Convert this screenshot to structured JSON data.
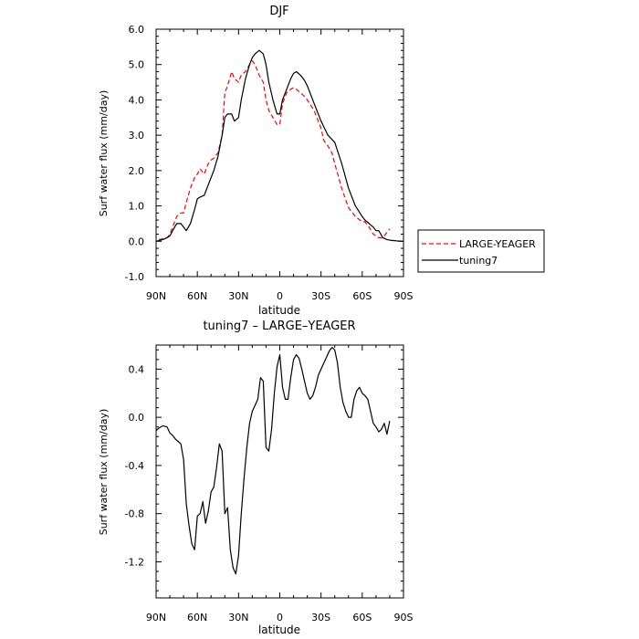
{
  "chart_data": [
    {
      "type": "line",
      "title": "DJF",
      "xlabel": "latitude",
      "ylabel": "Surf water flux (mm/day)",
      "xlim": [
        -90,
        90
      ],
      "ylim": [
        -1.0,
        6.0
      ],
      "x_ticks": [
        -90,
        -60,
        -30,
        0,
        30,
        60,
        90
      ],
      "x_tick_labels": [
        "90N",
        "60N",
        "30N",
        "0",
        "30S",
        "60S",
        "90S"
      ],
      "y_ticks": [
        -1.0,
        0.0,
        1.0,
        2.0,
        3.0,
        4.0,
        5.0,
        6.0
      ],
      "y_tick_labels": [
        "-1.0",
        "0.0",
        "1.0",
        "2.0",
        "3.0",
        "4.0",
        "5.0",
        "6.0"
      ],
      "grid": false,
      "legend_position": "right",
      "series": [
        {
          "name": "LARGE-YEAGER",
          "color": "#ff0000",
          "dash": "dashed",
          "x": [
            -88,
            -85,
            -82,
            -80,
            -78,
            -75,
            -72,
            -70,
            -68,
            -65,
            -62,
            -60,
            -58,
            -55,
            -52,
            -50,
            -48,
            -45,
            -42,
            -40,
            -38,
            -35,
            -33,
            -30,
            -28,
            -25,
            -22,
            -20,
            -18,
            -15,
            -12,
            -10,
            -8,
            -5,
            -2,
            0,
            2,
            5,
            8,
            10,
            12,
            15,
            18,
            20,
            25,
            30,
            32,
            35,
            38,
            40,
            45,
            50,
            55,
            60,
            62,
            65,
            68,
            70,
            72,
            75,
            78,
            80
          ],
          "y": [
            0.05,
            0.07,
            0.1,
            0.2,
            0.4,
            0.7,
            0.8,
            0.8,
            1.1,
            1.5,
            1.8,
            1.9,
            2.05,
            1.9,
            2.2,
            2.3,
            2.35,
            2.5,
            3.0,
            4.2,
            4.4,
            4.8,
            4.6,
            4.5,
            4.7,
            4.8,
            5.0,
            5.1,
            5.0,
            4.7,
            4.5,
            4.0,
            3.7,
            3.5,
            3.3,
            3.3,
            3.9,
            4.2,
            4.3,
            4.35,
            4.3,
            4.2,
            4.1,
            4.0,
            3.7,
            3.2,
            2.85,
            2.7,
            2.5,
            2.2,
            1.5,
            0.95,
            0.7,
            0.55,
            0.55,
            0.4,
            0.2,
            0.15,
            0.1,
            0.1,
            0.25,
            0.35
          ]
        },
        {
          "name": "tuning7",
          "color": "#000000",
          "dash": "solid",
          "x": [
            -90,
            -85,
            -82,
            -80,
            -78,
            -75,
            -72,
            -70,
            -68,
            -65,
            -62,
            -60,
            -58,
            -55,
            -52,
            -50,
            -48,
            -45,
            -42,
            -40,
            -38,
            -35,
            -33,
            -30,
            -28,
            -25,
            -22,
            -20,
            -18,
            -15,
            -12,
            -10,
            -8,
            -5,
            -2,
            0,
            2,
            5,
            8,
            10,
            12,
            15,
            18,
            20,
            25,
            30,
            35,
            40,
            45,
            50,
            55,
            60,
            62,
            65,
            68,
            70,
            72,
            75,
            78,
            80,
            85,
            90
          ],
          "y": [
            0.0,
            0.05,
            0.1,
            0.15,
            0.3,
            0.5,
            0.5,
            0.4,
            0.3,
            0.5,
            0.9,
            1.2,
            1.25,
            1.3,
            1.6,
            1.8,
            2.0,
            2.4,
            3.0,
            3.5,
            3.6,
            3.6,
            3.4,
            3.5,
            4.0,
            4.6,
            5.0,
            5.2,
            5.3,
            5.4,
            5.3,
            5.0,
            4.5,
            4.0,
            3.6,
            3.6,
            4.0,
            4.3,
            4.6,
            4.75,
            4.8,
            4.7,
            4.55,
            4.4,
            3.9,
            3.4,
            3.0,
            2.8,
            2.2,
            1.5,
            1.0,
            0.7,
            0.6,
            0.5,
            0.4,
            0.3,
            0.3,
            0.1,
            0.05,
            0.03,
            0.01,
            0.0
          ]
        }
      ]
    },
    {
      "type": "line",
      "title": "tuning7 – LARGE–YEAGER",
      "xlabel": "latitude",
      "ylabel": "Surf water flux (mm/day)",
      "xlim": [
        -90,
        90
      ],
      "ylim": [
        -1.5,
        0.6
      ],
      "x_ticks": [
        -90,
        -60,
        -30,
        0,
        30,
        60,
        90
      ],
      "x_tick_labels": [
        "90N",
        "60N",
        "30N",
        "0",
        "30S",
        "60S",
        "90S"
      ],
      "y_ticks": [
        -1.2,
        -0.8,
        -0.4,
        0.0,
        0.4
      ],
      "y_tick_labels": [
        "-1.2",
        "-0.8",
        "-0.4",
        "0.0",
        "0.4"
      ],
      "grid": false,
      "series": [
        {
          "name": "",
          "color": "#000000",
          "dash": "solid",
          "x": [
            -90,
            -88,
            -85,
            -82,
            -80,
            -78,
            -76,
            -74,
            -72,
            -70,
            -68,
            -66,
            -64,
            -62,
            -60,
            -58,
            -56,
            -54,
            -52,
            -50,
            -48,
            -46,
            -44,
            -42,
            -40,
            -38,
            -36,
            -34,
            -32,
            -30,
            -28,
            -26,
            -24,
            -22,
            -20,
            -18,
            -16,
            -14,
            -12,
            -10,
            -8,
            -6,
            -4,
            -2,
            0,
            2,
            4,
            6,
            8,
            10,
            12,
            14,
            16,
            18,
            20,
            22,
            24,
            26,
            28,
            30,
            32,
            34,
            36,
            38,
            40,
            42,
            44,
            46,
            48,
            50,
            52,
            54,
            56,
            58,
            60,
            62,
            64,
            66,
            68,
            70,
            72,
            74,
            76,
            78,
            80
          ],
          "y": [
            -0.11,
            -0.09,
            -0.07,
            -0.08,
            -0.13,
            -0.15,
            -0.18,
            -0.2,
            -0.22,
            -0.35,
            -0.72,
            -0.9,
            -1.05,
            -1.1,
            -0.82,
            -0.8,
            -0.7,
            -0.88,
            -0.78,
            -0.62,
            -0.58,
            -0.42,
            -0.22,
            -0.28,
            -0.8,
            -0.75,
            -1.1,
            -1.25,
            -1.3,
            -1.15,
            -0.8,
            -0.5,
            -0.25,
            -0.05,
            0.05,
            0.1,
            0.15,
            0.33,
            0.3,
            -0.25,
            -0.28,
            -0.1,
            0.2,
            0.42,
            0.52,
            0.25,
            0.15,
            0.15,
            0.33,
            0.48,
            0.52,
            0.49,
            0.4,
            0.3,
            0.2,
            0.15,
            0.18,
            0.25,
            0.35,
            0.4,
            0.45,
            0.5,
            0.55,
            0.58,
            0.56,
            0.45,
            0.25,
            0.12,
            0.05,
            0.0,
            0.0,
            0.15,
            0.22,
            0.25,
            0.2,
            0.18,
            0.15,
            0.05,
            -0.05,
            -0.08,
            -0.12,
            -0.1,
            -0.05,
            -0.14,
            -0.03
          ]
        }
      ]
    }
  ]
}
